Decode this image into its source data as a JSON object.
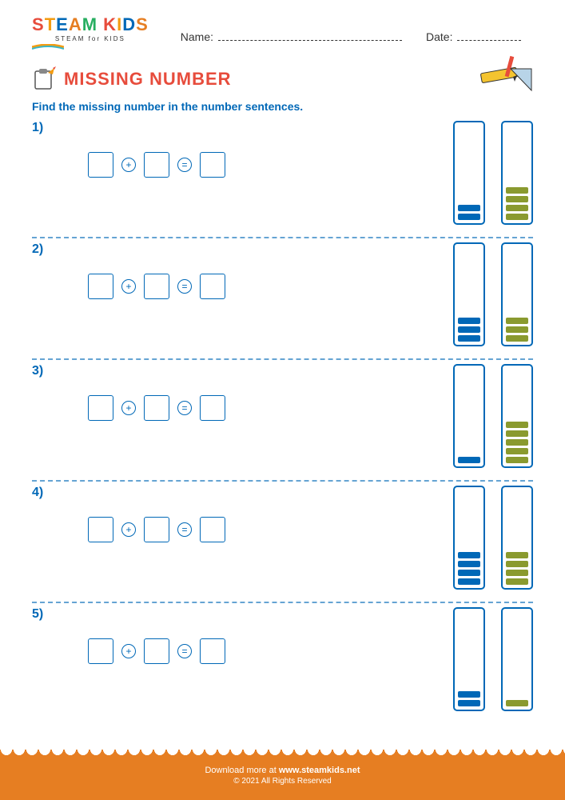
{
  "logo": {
    "main": "STEAM KIDS",
    "sub": "STEAM for KIDS",
    "colors": [
      "#e74c3c",
      "#f39c12",
      "#0068b7",
      "#e67e22",
      "#27ae60"
    ]
  },
  "header": {
    "name_label": "Name:",
    "name_line_width": 230,
    "date_label": "Date:",
    "date_line_width": 80
  },
  "title": "MISSING NUMBER",
  "title_color": "#e74c3c",
  "instruction": "Find the missing number in the number sentences.",
  "instruction_color": "#0068b7",
  "operators": {
    "plus": "+",
    "equals": "="
  },
  "box_border_color": "#0068b7",
  "tower_border_color": "#0068b7",
  "block_colors": {
    "blue": "#0068b7",
    "green": "#8a9a2f"
  },
  "problems": [
    {
      "num": "1)",
      "left_blocks": 2,
      "left_color": "#0068b7",
      "right_blocks": 4,
      "right_color": "#8a9a2f"
    },
    {
      "num": "2)",
      "left_blocks": 3,
      "left_color": "#0068b7",
      "right_blocks": 3,
      "right_color": "#8a9a2f"
    },
    {
      "num": "3)",
      "left_blocks": 1,
      "left_color": "#0068b7",
      "right_blocks": 5,
      "right_color": "#8a9a2f"
    },
    {
      "num": "4)",
      "left_blocks": 4,
      "left_color": "#0068b7",
      "right_blocks": 4,
      "right_color": "#8a9a2f"
    },
    {
      "num": "5)",
      "left_blocks": 2,
      "left_color": "#0068b7",
      "right_blocks": 1,
      "right_color": "#8a9a2f"
    }
  ],
  "footer": {
    "download_text": "Download more at ",
    "url": "www.steamkids.net",
    "copyright": "© 2021 All Rights Reserved",
    "bg_color": "#e67e22"
  }
}
